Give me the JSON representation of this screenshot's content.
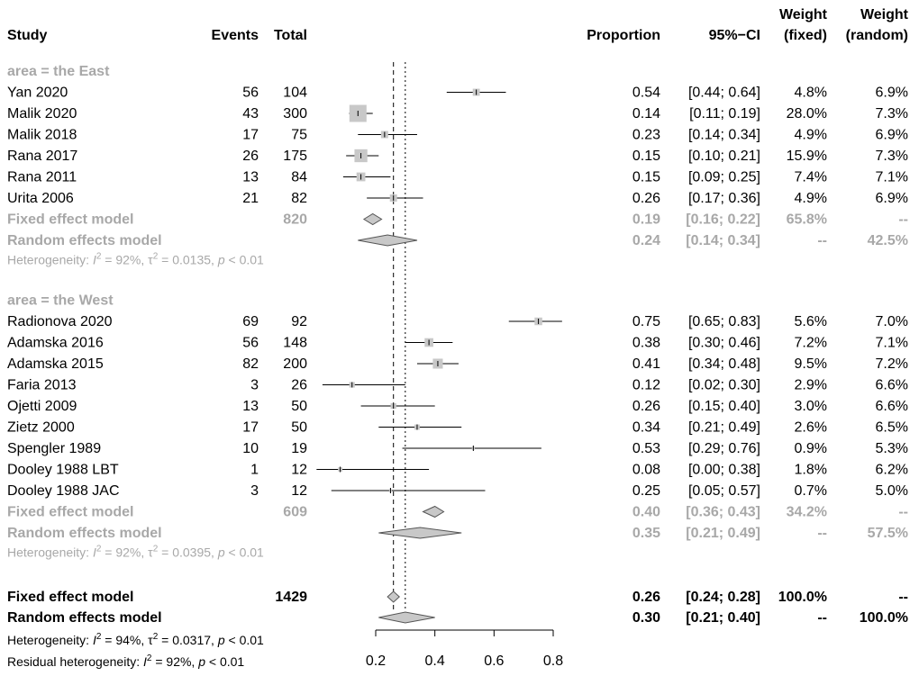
{
  "headers": {
    "study": "Study",
    "events": "Events",
    "total": "Total",
    "proportion": "Proportion",
    "ci": "95%−CI",
    "wf_line1": "Weight",
    "wf_line2": "(fixed)",
    "wr_line1": "Weight",
    "wr_line2": "(random)"
  },
  "chart_data": {
    "type": "forest",
    "xlim": [
      0.2,
      0.8
    ],
    "xticks": [
      0.2,
      0.4,
      0.6,
      0.8
    ],
    "xtick_labels": [
      "0.2",
      "0.4",
      "0.6",
      "0.8"
    ],
    "reference_lines": {
      "fixed_overall": 0.26,
      "random_overall": 0.3
    },
    "subgroups": [
      {
        "label": "area = the East",
        "studies": [
          {
            "name": "Yan 2020",
            "events": "56",
            "total": "104",
            "est": 0.54,
            "lo": 0.44,
            "hi": 0.64,
            "prop": "0.54",
            "ci": "[0.44; 0.64]",
            "wf": "4.8%",
            "wr": "6.9%",
            "wf_num": 4.8
          },
          {
            "name": "Malik 2020",
            "events": "43",
            "total": "300",
            "est": 0.14,
            "lo": 0.11,
            "hi": 0.19,
            "prop": "0.14",
            "ci": "[0.11; 0.19]",
            "wf": "28.0%",
            "wr": "7.3%",
            "wf_num": 28.0
          },
          {
            "name": "Malik 2018",
            "events": "17",
            "total": "75",
            "est": 0.23,
            "lo": 0.14,
            "hi": 0.34,
            "prop": "0.23",
            "ci": "[0.14; 0.34]",
            "wf": "4.9%",
            "wr": "6.9%",
            "wf_num": 4.9
          },
          {
            "name": "Rana 2017",
            "events": "26",
            "total": "175",
            "est": 0.15,
            "lo": 0.1,
            "hi": 0.21,
            "prop": "0.15",
            "ci": "[0.10; 0.21]",
            "wf": "15.9%",
            "wr": "7.3%",
            "wf_num": 15.9
          },
          {
            "name": "Rana 2011",
            "events": "13",
            "total": "84",
            "est": 0.15,
            "lo": 0.09,
            "hi": 0.25,
            "prop": "0.15",
            "ci": "[0.09; 0.25]",
            "wf": "7.4%",
            "wr": "7.1%",
            "wf_num": 7.4
          },
          {
            "name": "Urita 2006",
            "events": "21",
            "total": "82",
            "est": 0.26,
            "lo": 0.17,
            "hi": 0.36,
            "prop": "0.26",
            "ci": "[0.17; 0.36]",
            "wf": "4.9%",
            "wr": "6.9%",
            "wf_num": 4.9
          }
        ],
        "fixed": {
          "label": "Fixed effect model",
          "total": "820",
          "est": 0.19,
          "lo": 0.16,
          "hi": 0.22,
          "prop": "0.19",
          "ci": "[0.16; 0.22]",
          "wf": "65.8%",
          "wr": "--"
        },
        "random": {
          "label": "Random effects model",
          "est": 0.24,
          "lo": 0.14,
          "hi": 0.34,
          "prop": "0.24",
          "ci": "[0.14; 0.34]",
          "wf": "--",
          "wr": "42.5%"
        },
        "het": {
          "prefix": "Heterogeneity: ",
          "i2_label": "I",
          "i2_sup": "2",
          "i2_val": " = 92%, ",
          "tau_label": "τ",
          "tau_sup": "2",
          "tau_val": " = 0.0135, ",
          "p_label": "p",
          "p_val": " < 0.01"
        }
      },
      {
        "label": "area = the West",
        "studies": [
          {
            "name": "Radionova 2020",
            "events": "69",
            "total": "92",
            "est": 0.75,
            "lo": 0.65,
            "hi": 0.83,
            "prop": "0.75",
            "ci": "[0.65; 0.83]",
            "wf": "5.6%",
            "wr": "7.0%",
            "wf_num": 5.6
          },
          {
            "name": "Adamska 2016",
            "events": "56",
            "total": "148",
            "est": 0.38,
            "lo": 0.3,
            "hi": 0.46,
            "prop": "0.38",
            "ci": "[0.30; 0.46]",
            "wf": "7.2%",
            "wr": "7.1%",
            "wf_num": 7.2
          },
          {
            "name": "Adamska 2015",
            "events": "82",
            "total": "200",
            "est": 0.41,
            "lo": 0.34,
            "hi": 0.48,
            "prop": "0.41",
            "ci": "[0.34; 0.48]",
            "wf": "9.5%",
            "wr": "7.2%",
            "wf_num": 9.5
          },
          {
            "name": "Faria 2013",
            "events": "3",
            "total": "26",
            "est": 0.12,
            "lo": 0.02,
            "hi": 0.3,
            "prop": "0.12",
            "ci": "[0.02; 0.30]",
            "wf": "2.9%",
            "wr": "6.6%",
            "wf_num": 2.9
          },
          {
            "name": "Ojetti 2009",
            "events": "13",
            "total": "50",
            "est": 0.26,
            "lo": 0.15,
            "hi": 0.4,
            "prop": "0.26",
            "ci": "[0.15; 0.40]",
            "wf": "3.0%",
            "wr": "6.6%",
            "wf_num": 3.0
          },
          {
            "name": "Zietz 2000",
            "events": "17",
            "total": "50",
            "est": 0.34,
            "lo": 0.21,
            "hi": 0.49,
            "prop": "0.34",
            "ci": "[0.21; 0.49]",
            "wf": "2.6%",
            "wr": "6.5%",
            "wf_num": 2.6
          },
          {
            "name": "Spengler 1989",
            "events": "10",
            "total": "19",
            "est": 0.53,
            "lo": 0.29,
            "hi": 0.76,
            "prop": "0.53",
            "ci": "[0.29; 0.76]",
            "wf": "0.9%",
            "wr": "5.3%",
            "wf_num": 0.9
          },
          {
            "name": "Dooley 1988 LBT",
            "events": "1",
            "total": "12",
            "est": 0.08,
            "lo": 0.0,
            "hi": 0.38,
            "prop": "0.08",
            "ci": "[0.00; 0.38]",
            "wf": "1.8%",
            "wr": "6.2%",
            "wf_num": 1.8
          },
          {
            "name": "Dooley 1988 JAC",
            "events": "3",
            "total": "12",
            "est": 0.25,
            "lo": 0.05,
            "hi": 0.57,
            "prop": "0.25",
            "ci": "[0.05; 0.57]",
            "wf": "0.7%",
            "wr": "5.0%",
            "wf_num": 0.7
          }
        ],
        "fixed": {
          "label": "Fixed effect model",
          "total": "609",
          "est": 0.4,
          "lo": 0.36,
          "hi": 0.43,
          "prop": "0.40",
          "ci": "[0.36; 0.43]",
          "wf": "34.2%",
          "wr": "--"
        },
        "random": {
          "label": "Random effects model",
          "est": 0.35,
          "lo": 0.21,
          "hi": 0.49,
          "prop": "0.35",
          "ci": "[0.21; 0.49]",
          "wf": "--",
          "wr": "57.5%"
        },
        "het": {
          "prefix": "Heterogeneity: ",
          "i2_label": "I",
          "i2_sup": "2",
          "i2_val": " = 92%, ",
          "tau_label": "τ",
          "tau_sup": "2",
          "tau_val": " = 0.0395, ",
          "p_label": "p",
          "p_val": " < 0.01"
        }
      }
    ],
    "overall": {
      "fixed": {
        "label": "Fixed effect model",
        "total": "1429",
        "est": 0.26,
        "lo": 0.24,
        "hi": 0.28,
        "prop": "0.26",
        "ci": "[0.24; 0.28]",
        "wf": "100.0%",
        "wr": "--"
      },
      "random": {
        "label": "Random effects model",
        "est": 0.3,
        "lo": 0.21,
        "hi": 0.4,
        "prop": "0.30",
        "ci": "[0.21; 0.40]",
        "wf": "--",
        "wr": "100.0%"
      },
      "het": {
        "prefix": "Heterogeneity: ",
        "i2_label": "I",
        "i2_sup": "2",
        "i2_val": " = 94%, ",
        "tau_label": "τ",
        "tau_sup": "2",
        "tau_val": " = 0.0317, ",
        "p_label": "p",
        "p_val": " < 0.01"
      },
      "residual": {
        "prefix": "Residual heterogeneity: ",
        "i2_label": "I",
        "i2_sup": "2",
        "i2_val": " = 92%, ",
        "p_label": "p",
        "p_val": " < 0.01"
      }
    }
  }
}
